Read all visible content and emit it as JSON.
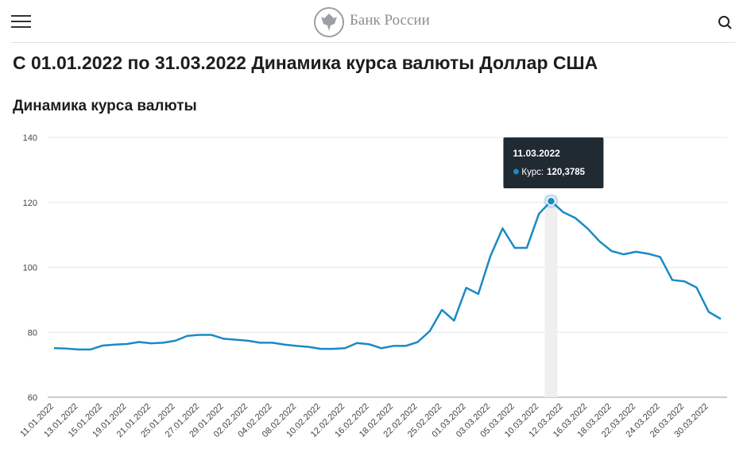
{
  "header": {
    "brand": "Банк России"
  },
  "title": "С 01.01.2022 по 31.03.2022 Динамика курса валюты Доллар США",
  "chart_data": {
    "type": "line",
    "title": "Динамика курса валюты",
    "categories": [
      "11.01.2022",
      null,
      "13.01.2022",
      null,
      "15.01.2022",
      null,
      "19.01.2022",
      null,
      "21.01.2022",
      null,
      "25.01.2022",
      null,
      "27.01.2022",
      null,
      "29.01.2022",
      null,
      "02.02.2022",
      null,
      "04.02.2022",
      null,
      "08.02.2022",
      null,
      "10.02.2022",
      null,
      "12.02.2022",
      null,
      "16.02.2022",
      null,
      "18.02.2022",
      null,
      "22.02.2022",
      null,
      "25.02.2022",
      null,
      "01.03.2022",
      null,
      "03.03.2022",
      null,
      "05.03.2022",
      null,
      "10.03.2022",
      null,
      "12.03.2022",
      null,
      "16.03.2022",
      null,
      "18.03.2022",
      null,
      "22.03.2022",
      null,
      "24.03.2022",
      null,
      "26.03.2022",
      null,
      "30.03.2022",
      null
    ],
    "series": [
      {
        "name": "Курс",
        "color": "#1a8ac6",
        "values": [
          75.1,
          75.0,
          74.7,
          74.7,
          75.9,
          76.2,
          76.4,
          77.0,
          76.6,
          76.8,
          77.4,
          78.9,
          79.2,
          79.2,
          78.0,
          77.7,
          77.4,
          76.8,
          76.8,
          76.2,
          75.8,
          75.5,
          74.9,
          74.9,
          75.1,
          76.7,
          76.3,
          75.1,
          75.8,
          75.8,
          77.0,
          80.4,
          86.9,
          83.6,
          93.7,
          91.8,
          103.5,
          112.0,
          106.0,
          106.0,
          116.5,
          120.3785,
          117.0,
          115.2,
          112.0,
          108.0,
          105.0,
          104.0,
          104.8,
          104.2,
          103.2,
          96.1,
          95.7,
          93.8,
          86.3,
          84.1
        ]
      }
    ],
    "ylim": [
      60,
      140
    ],
    "yticks": [
      60,
      80,
      100,
      120,
      140
    ],
    "grid": true,
    "tooltip": {
      "date": "11.03.2022",
      "label": "Курс:",
      "value": "120,3785"
    }
  }
}
